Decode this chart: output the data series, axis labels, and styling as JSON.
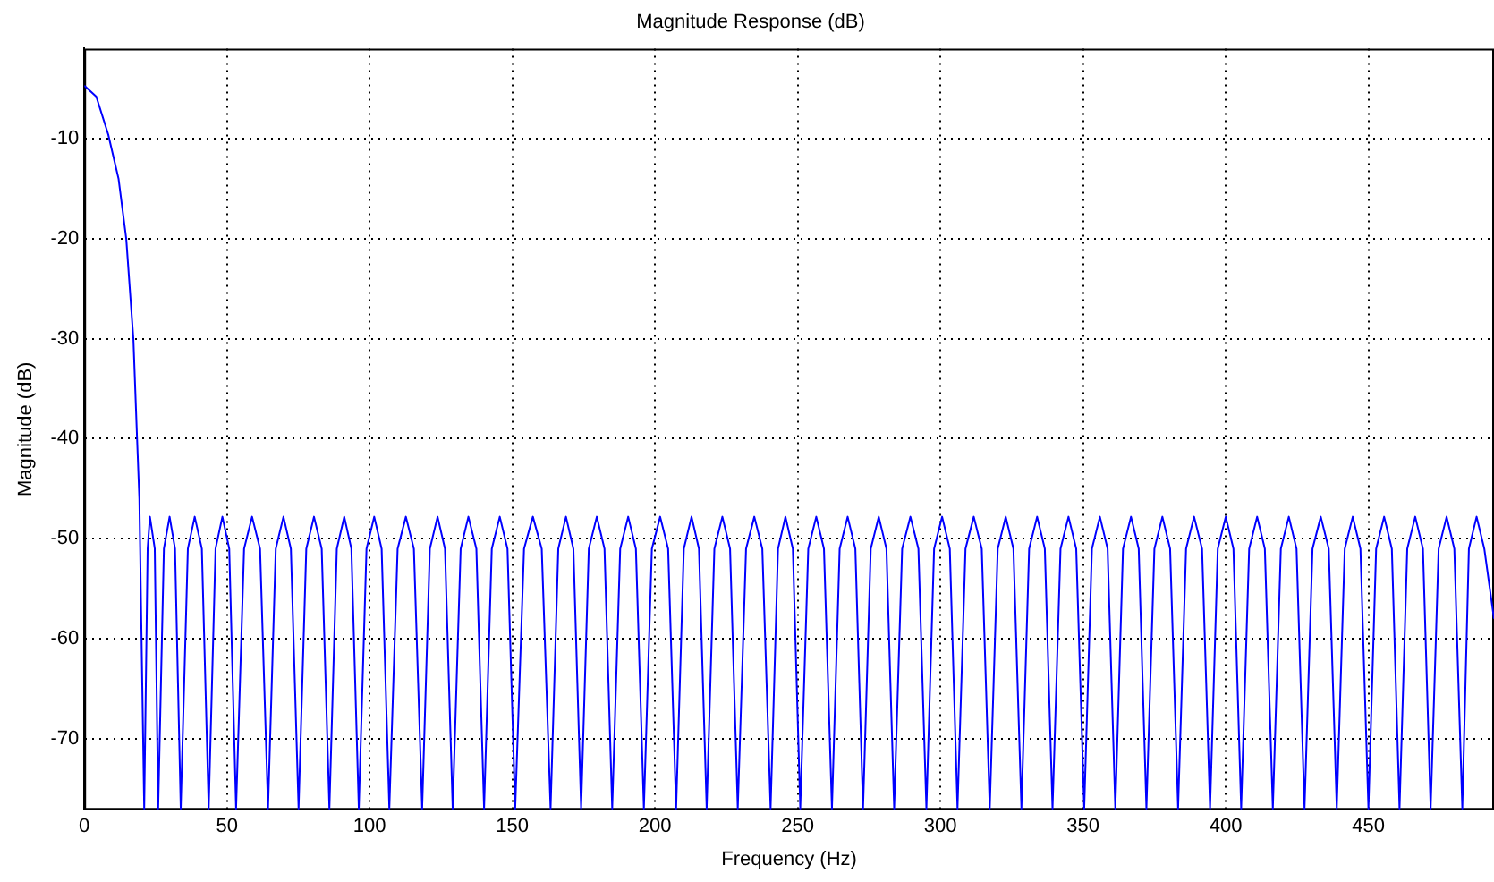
{
  "chart_data": {
    "type": "line",
    "title": "Magnitude Response (dB)",
    "xlabel": "Frequency (Hz)",
    "ylabel": "Magnitude (dB)",
    "xlim": [
      0,
      494
    ],
    "ylim": [
      -77.1,
      -1
    ],
    "xticks": [
      0,
      50,
      100,
      150,
      200,
      250,
      300,
      350,
      400,
      450
    ],
    "yticks": [
      -70,
      -60,
      -50,
      -40,
      -30,
      -20,
      -10
    ],
    "grid": true,
    "legend": false,
    "marker": "none",
    "line_style": "solid",
    "series": [
      {
        "color": "#0000ff",
        "x": [
          0,
          4.2,
          8.4,
          12,
          14.7,
          17.2,
          18.5,
          19.3,
          21.0,
          22.2,
          23.0,
          24.7,
          25.9,
          27.9,
          29.9,
          31.8,
          33.8,
          36.3,
          38.7,
          41.2,
          43.6,
          46.0,
          48.4,
          50.8,
          53.2,
          56.0,
          58.8,
          61.6,
          64.4,
          67.1,
          69.8,
          72.4,
          75.1,
          77.8,
          80.5,
          83.2,
          85.9,
          88.5,
          91.1,
          93.6,
          96.2,
          98.9,
          101.6,
          104.2,
          106.9,
          109.8,
          112.7,
          115.5,
          118.4,
          121.1,
          123.8,
          126.4,
          129.1,
          131.9,
          134.6,
          137.4,
          140.1,
          142.8,
          145.6,
          148.3,
          151.0,
          154.1,
          157.2,
          160.3,
          163.4,
          166.1,
          168.8,
          171.4,
          174.1,
          176.8,
          179.6,
          182.3,
          185.0,
          187.8,
          190.6,
          193.3,
          196.1,
          198.9,
          201.8,
          204.6,
          207.4,
          210.1,
          212.8,
          215.4,
          218.1,
          220.8,
          223.6,
          226.3,
          229.0,
          231.9,
          234.8,
          237.6,
          240.5,
          243.1,
          245.7,
          248.3,
          250.9,
          253.7,
          256.5,
          259.2,
          262.0,
          264.7,
          267.5,
          270.2,
          272.9,
          275.6,
          278.4,
          281.1,
          283.8,
          286.6,
          289.5,
          292.3,
          295.1,
          297.8,
          300.6,
          303.3,
          306.0,
          308.8,
          311.7,
          314.5,
          317.3,
          320.1,
          322.9,
          325.6,
          328.4,
          331.1,
          333.9,
          336.6,
          339.3,
          342.1,
          344.9,
          347.6,
          350.4,
          353.1,
          355.9,
          358.6,
          361.3,
          364.0,
          366.8,
          369.5,
          372.2,
          375.0,
          377.8,
          380.5,
          383.3,
          386.1,
          388.9,
          391.7,
          394.5,
          397.2,
          400.0,
          402.7,
          405.4,
          408.2,
          411.0,
          413.7,
          416.5,
          419.3,
          422.1,
          424.8,
          427.6,
          430.4,
          433.3,
          436.1,
          438.9,
          441.7,
          444.5,
          447.2,
          450.0,
          452.7,
          455.5,
          458.2,
          460.9,
          463.6,
          466.4,
          469.1,
          471.8,
          474.6,
          477.4,
          480.1,
          482.9,
          485.2,
          487.9,
          490.6,
          494
        ],
        "values": [
          -4.7,
          -5.8,
          -9.6,
          -14,
          -20,
          -30,
          -40,
          -46,
          -77,
          -51,
          -47.8,
          -51,
          -77,
          -51,
          -47.8,
          -51,
          -77,
          -51,
          -47.8,
          -51,
          -77,
          -51,
          -47.8,
          -51,
          -77,
          -51,
          -47.8,
          -51,
          -77,
          -51,
          -47.8,
          -51,
          -77,
          -51,
          -47.8,
          -51,
          -77,
          -51,
          -47.8,
          -51,
          -77,
          -51,
          -47.8,
          -51,
          -77,
          -51,
          -47.8,
          -51,
          -77,
          -51,
          -47.8,
          -51,
          -77,
          -51,
          -47.8,
          -51,
          -77,
          -51,
          -47.8,
          -51,
          -77,
          -51,
          -47.8,
          -51,
          -77,
          -51,
          -47.8,
          -51,
          -77,
          -51,
          -47.8,
          -51,
          -77,
          -51,
          -47.8,
          -51,
          -77,
          -51,
          -47.8,
          -51,
          -77,
          -51,
          -47.8,
          -51,
          -77,
          -51,
          -47.8,
          -51,
          -77,
          -51,
          -47.8,
          -51,
          -77,
          -51,
          -47.8,
          -51,
          -77,
          -51,
          -47.8,
          -51,
          -77,
          -51,
          -47.8,
          -51,
          -77,
          -51,
          -47.8,
          -51,
          -77,
          -51,
          -47.8,
          -51,
          -77,
          -51,
          -47.8,
          -51,
          -77,
          -51,
          -47.8,
          -51,
          -77,
          -51,
          -47.8,
          -51,
          -77,
          -51,
          -47.8,
          -51,
          -77,
          -51,
          -47.8,
          -51,
          -77,
          -51,
          -47.8,
          -51,
          -77,
          -51,
          -47.8,
          -51,
          -77,
          -51,
          -47.8,
          -51,
          -77,
          -51,
          -47.8,
          -51,
          -77,
          -51,
          -47.8,
          -51,
          -77,
          -51,
          -47.8,
          -51,
          -77,
          -51,
          -47.8,
          -51,
          -77,
          -51,
          -47.8,
          -51,
          -77,
          -51,
          -47.8,
          -51,
          -77,
          -51,
          -47.8,
          -51,
          -77,
          -51,
          -47.8,
          -51,
          -77,
          -51,
          -47.8,
          -51,
          -77,
          -51,
          -47.8,
          -51,
          -58
        ]
      }
    ]
  }
}
